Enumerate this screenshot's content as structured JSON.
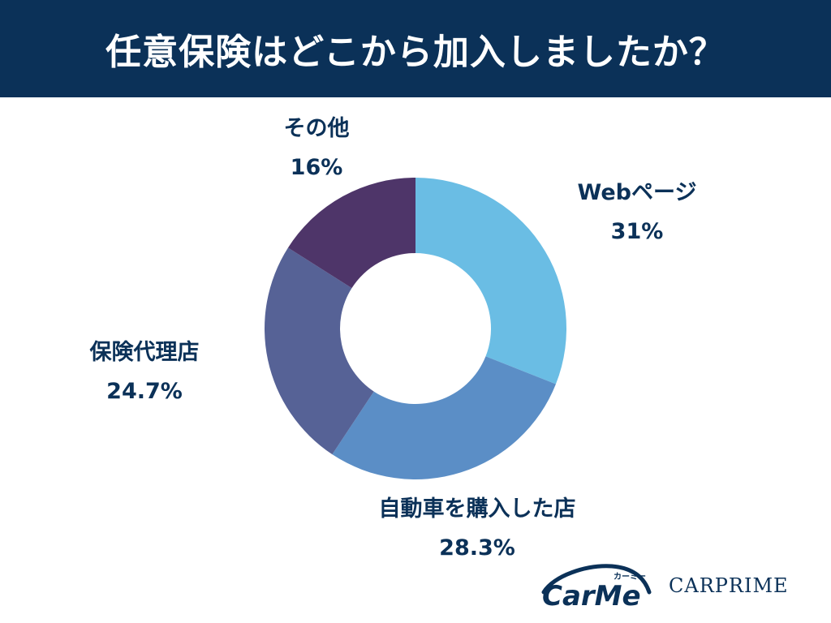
{
  "header": {
    "title": "任意保険はどこから加入しましたか？"
  },
  "chart_data": {
    "type": "pie",
    "donut": true,
    "slices": [
      {
        "label": "Webページ",
        "value": 31,
        "value_text": "31%",
        "color": "#6abde4"
      },
      {
        "label": "自動車を購入した店",
        "value": 28.3,
        "value_text": "28.3%",
        "color": "#5b8ec6"
      },
      {
        "label": "保険代理店",
        "value": 24.7,
        "value_text": "24.7%",
        "color": "#566296"
      },
      {
        "label": "その他",
        "value": 16,
        "value_text": "16%",
        "color": "#4e3569"
      }
    ]
  },
  "logos": {
    "carme_text": "CarMe",
    "carme_kana": "カーミー",
    "carprime_text": "CARPRIME"
  },
  "colors": {
    "header_bg": "#0b3158",
    "label_text": "#0b3158"
  }
}
